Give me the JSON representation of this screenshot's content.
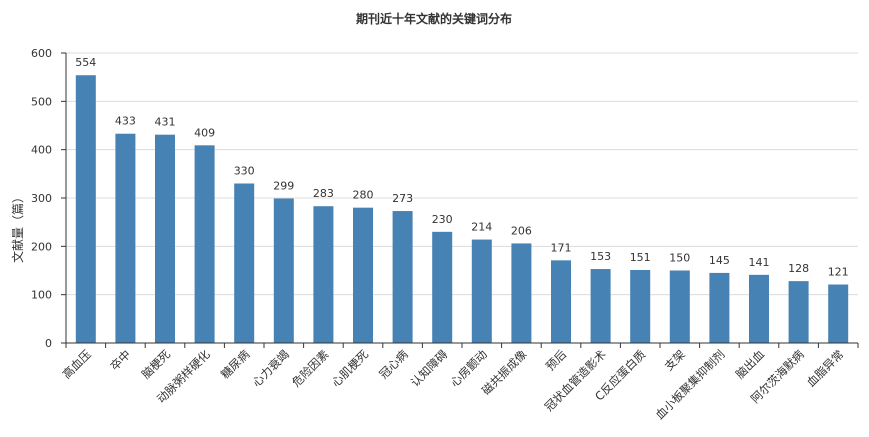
{
  "chart_data": {
    "type": "bar",
    "title": "期刊近十年文献的关键词分布",
    "xlabel": "",
    "ylabel": "文献量（篇）",
    "ylim": [
      0,
      600
    ],
    "yticks": [
      0,
      100,
      200,
      300,
      400,
      500,
      600
    ],
    "grid": true,
    "bar_color": "#4682b4",
    "categories": [
      "高血压",
      "卒中",
      "脑梗死",
      "动脉粥样硬化",
      "糖尿病",
      "心力衰竭",
      "危险因素",
      "心肌梗死",
      "冠心病",
      "认知障碍",
      "心房颤动",
      "磁共振成像",
      "预后",
      "冠状血管造影术",
      "C反应蛋白质",
      "支架",
      "血小板聚集抑制剂",
      "脑出血",
      "阿尔茨海默病",
      "血脂异常"
    ],
    "values": [
      554,
      433,
      431,
      409,
      330,
      299,
      283,
      280,
      273,
      230,
      214,
      206,
      171,
      153,
      151,
      150,
      145,
      141,
      128,
      121
    ]
  }
}
